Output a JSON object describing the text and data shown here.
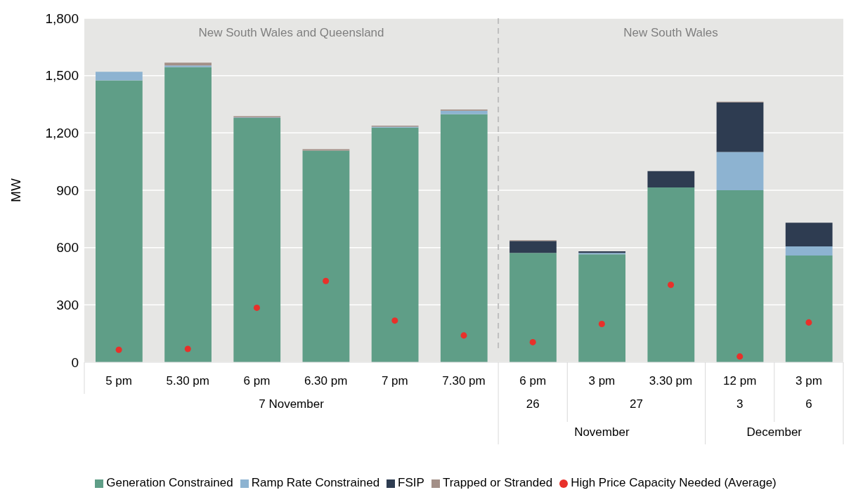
{
  "chart_data": {
    "type": "bar",
    "stacked": true,
    "ylabel": "MW",
    "categories": [
      "5 pm",
      "5.30 pm",
      "6 pm",
      "6.30 pm",
      "7 pm",
      "7.30 pm",
      "6 pm",
      "3 pm",
      "3.30 pm",
      "12 pm",
      "3 pm"
    ],
    "series": [
      {
        "name": "Generation Constrained",
        "color": "#5f9e87",
        "values": [
          1475,
          1545,
          1278,
          1108,
          1228,
          1298,
          572,
          565,
          915,
          900,
          558
        ]
      },
      {
        "name": "Ramp Rate Constrained",
        "color": "#8db3d1",
        "values": [
          45,
          8,
          3,
          null,
          4,
          18,
          null,
          7,
          null,
          200,
          48
        ]
      },
      {
        "name": "FSIP",
        "color": "#2e3c51",
        "values": [
          null,
          null,
          null,
          null,
          null,
          null,
          63,
          8,
          85,
          260,
          124
        ]
      },
      {
        "name": "Trapped or Stranded",
        "color": "#a38f87",
        "values": [
          null,
          15,
          7,
          7,
          6,
          6,
          3,
          null,
          null,
          4,
          null
        ]
      },
      {
        "name": "High Price Capacity Needed (Average)",
        "type": "scatter",
        "color": "#e8302a",
        "values": [
          65,
          70,
          285,
          425,
          218,
          140,
          105,
          200,
          405,
          30,
          208
        ]
      }
    ],
    "ylim": [
      0,
      1800
    ],
    "yticks": [
      0,
      300,
      600,
      900,
      {
        "value": 1200,
        "label": "1,200"
      },
      {
        "value": 1500,
        "label": "1,500"
      },
      {
        "value": 1800,
        "label": "1,800"
      }
    ],
    "grid": "y",
    "legend": "bottom",
    "marker": "circle",
    "annotations": [
      "New South Wales and Queensland",
      "New South Wales",
      "7 November",
      "26",
      "27",
      "3",
      "6",
      "November",
      "December"
    ]
  }
}
